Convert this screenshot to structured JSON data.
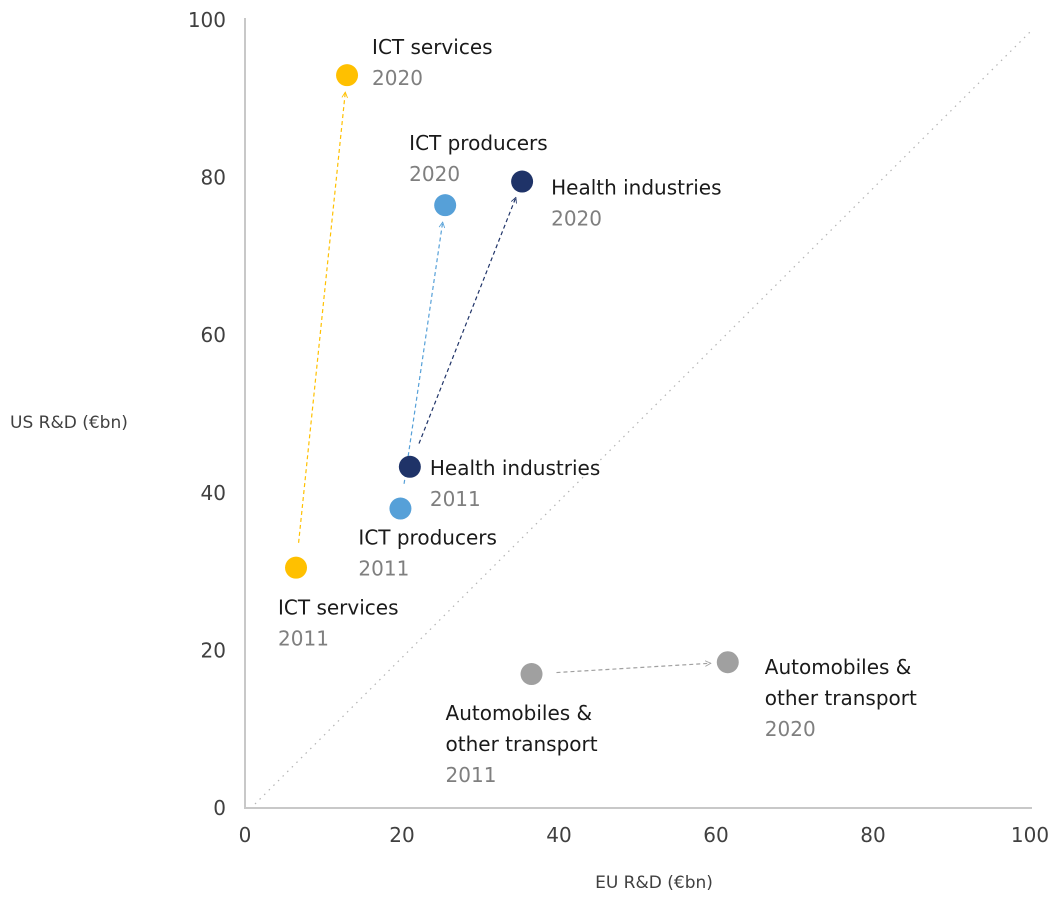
{
  "chart_data": {
    "type": "scatter",
    "xlabel": "EU R&D (€bn)",
    "ylabel": "US R&D (€bn)",
    "xlim": [
      0,
      100
    ],
    "ylim": [
      0,
      100
    ],
    "x_ticks": [
      0,
      20,
      40,
      60,
      80,
      100
    ],
    "y_ticks": [
      0,
      20,
      40,
      60,
      80,
      100
    ],
    "grid": false,
    "reference_line": {
      "style": "dotted",
      "from": [
        0,
        0
      ],
      "to": [
        100,
        100
      ]
    },
    "series": [
      {
        "name": "ICT services",
        "color": "#ffc000",
        "points": [
          {
            "year": "2011",
            "x": 6.5,
            "y": 30.5
          },
          {
            "year": "2020",
            "x": 13,
            "y": 93
          }
        ]
      },
      {
        "name": "ICT producers",
        "color": "#56a0d8",
        "points": [
          {
            "year": "2011",
            "x": 19.8,
            "y": 38
          },
          {
            "year": "2020",
            "x": 25.5,
            "y": 76.5
          }
        ]
      },
      {
        "name": "Health industries",
        "color": "#1f3368",
        "points": [
          {
            "year": "2011",
            "x": 21,
            "y": 43.3
          },
          {
            "year": "2020",
            "x": 35.3,
            "y": 79.5
          }
        ]
      },
      {
        "name": "Automobiles & other transport",
        "name_lines": [
          "Automobiles &",
          "other transport"
        ],
        "color": "#a0a0a0",
        "points": [
          {
            "year": "2011",
            "x": 36.5,
            "y": 17
          },
          {
            "year": "2020",
            "x": 61.5,
            "y": 18.5
          }
        ]
      }
    ]
  }
}
